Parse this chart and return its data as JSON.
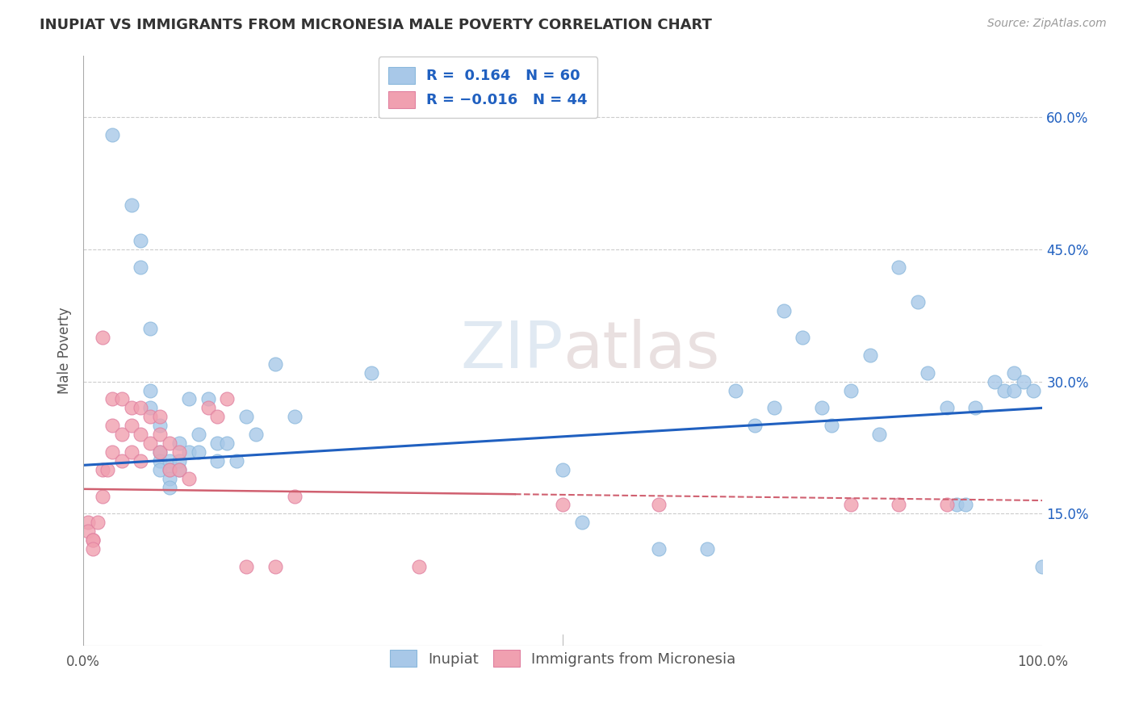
{
  "title": "INUPIAT VS IMMIGRANTS FROM MICRONESIA MALE POVERTY CORRELATION CHART",
  "source": "Source: ZipAtlas.com",
  "ylabel": "Male Poverty",
  "xlim": [
    0,
    1.0
  ],
  "ylim": [
    0,
    0.67
  ],
  "yticks_right": [
    0.15,
    0.3,
    0.45,
    0.6
  ],
  "ytick_labels_right": [
    "15.0%",
    "30.0%",
    "45.0%",
    "60.0%"
  ],
  "watermark": "ZIPatlas",
  "legend_blue_label": "Inupiat",
  "legend_pink_label": "Immigrants from Micronesia",
  "blue_R": 0.164,
  "blue_N": 60,
  "pink_R": -0.016,
  "pink_N": 44,
  "blue_color": "#a8c8e8",
  "pink_color": "#f0a0b0",
  "blue_line_color": "#2060c0",
  "pink_line_color": "#d06070",
  "background_color": "#ffffff",
  "blue_x": [
    0.03,
    0.05,
    0.06,
    0.06,
    0.07,
    0.07,
    0.07,
    0.08,
    0.08,
    0.08,
    0.08,
    0.09,
    0.09,
    0.09,
    0.09,
    0.1,
    0.1,
    0.1,
    0.11,
    0.11,
    0.12,
    0.12,
    0.13,
    0.14,
    0.14,
    0.15,
    0.16,
    0.17,
    0.18,
    0.2,
    0.22,
    0.3,
    0.5,
    0.52,
    0.6,
    0.65,
    0.68,
    0.7,
    0.72,
    0.73,
    0.75,
    0.77,
    0.78,
    0.8,
    0.82,
    0.83,
    0.85,
    0.87,
    0.88,
    0.9,
    0.91,
    0.92,
    0.93,
    0.95,
    0.96,
    0.97,
    0.97,
    0.98,
    0.99,
    1.0
  ],
  "blue_y": [
    0.58,
    0.5,
    0.46,
    0.43,
    0.36,
    0.29,
    0.27,
    0.25,
    0.22,
    0.21,
    0.2,
    0.21,
    0.2,
    0.19,
    0.18,
    0.23,
    0.21,
    0.2,
    0.28,
    0.22,
    0.24,
    0.22,
    0.28,
    0.23,
    0.21,
    0.23,
    0.21,
    0.26,
    0.24,
    0.32,
    0.26,
    0.31,
    0.2,
    0.14,
    0.11,
    0.11,
    0.29,
    0.25,
    0.27,
    0.38,
    0.35,
    0.27,
    0.25,
    0.29,
    0.33,
    0.24,
    0.43,
    0.39,
    0.31,
    0.27,
    0.16,
    0.16,
    0.27,
    0.3,
    0.29,
    0.31,
    0.29,
    0.3,
    0.29,
    0.09
  ],
  "pink_x": [
    0.005,
    0.005,
    0.01,
    0.01,
    0.01,
    0.015,
    0.02,
    0.02,
    0.02,
    0.025,
    0.03,
    0.03,
    0.03,
    0.04,
    0.04,
    0.04,
    0.05,
    0.05,
    0.05,
    0.06,
    0.06,
    0.06,
    0.07,
    0.07,
    0.08,
    0.08,
    0.08,
    0.09,
    0.09,
    0.1,
    0.1,
    0.11,
    0.13,
    0.14,
    0.15,
    0.17,
    0.2,
    0.22,
    0.35,
    0.5,
    0.6,
    0.8,
    0.85,
    0.9
  ],
  "pink_y": [
    0.14,
    0.13,
    0.12,
    0.12,
    0.11,
    0.14,
    0.35,
    0.2,
    0.17,
    0.2,
    0.28,
    0.25,
    0.22,
    0.28,
    0.24,
    0.21,
    0.27,
    0.25,
    0.22,
    0.27,
    0.24,
    0.21,
    0.26,
    0.23,
    0.26,
    0.24,
    0.22,
    0.23,
    0.2,
    0.22,
    0.2,
    0.19,
    0.27,
    0.26,
    0.28,
    0.09,
    0.09,
    0.17,
    0.09,
    0.16,
    0.16,
    0.16,
    0.16,
    0.16
  ]
}
